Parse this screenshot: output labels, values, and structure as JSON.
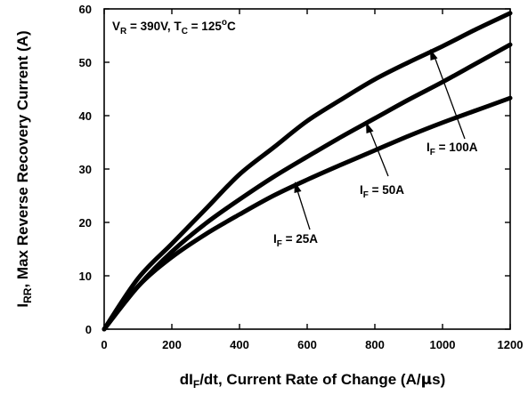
{
  "chart_data": {
    "type": "line",
    "title": "",
    "xlabel": {
      "main": "dI",
      "sub": "F",
      "rest": "/dt, Current Rate of Change (A/",
      "mu": "μ",
      "tail": "s)"
    },
    "ylabel": {
      "main": "I",
      "sub": "RR",
      "rest": ", Max Reverse Recovery Current (A)"
    },
    "xlim": [
      0,
      1200
    ],
    "ylim": [
      0,
      60
    ],
    "xticks": [
      "0",
      "200",
      "400",
      "600",
      "800",
      "1000",
      "1200"
    ],
    "yticks": [
      "0",
      "10",
      "20",
      "30",
      "40",
      "50",
      "60"
    ],
    "grid": false,
    "condition": {
      "v": "V",
      "v_sub": "R",
      "v_rest": " = 390V, T",
      "t_sub": "C",
      "t_rest": " = 125",
      "deg": "o",
      "unit": "C"
    },
    "series": [
      {
        "name": "I_F = 100A",
        "label": {
          "main": "I",
          "sub": "F",
          "rest": " = 100A"
        },
        "x": [
          0,
          100,
          200,
          300,
          400,
          500,
          600,
          700,
          800,
          900,
          1000,
          1100,
          1200
        ],
        "y": [
          0,
          9.5,
          16,
          22.5,
          29,
          34,
          39,
          43,
          46.8,
          50,
          53,
          56.2,
          59.2
        ]
      },
      {
        "name": "I_F = 50A",
        "label": {
          "main": "I",
          "sub": "F",
          "rest": " = 50A"
        },
        "x": [
          0,
          100,
          200,
          300,
          400,
          500,
          600,
          700,
          800,
          900,
          1000,
          1100,
          1200
        ],
        "y": [
          0,
          8,
          14.5,
          19.8,
          24.3,
          28.5,
          32.3,
          36,
          39.5,
          43,
          46.3,
          49.8,
          53.3
        ]
      },
      {
        "name": "I_F = 25A",
        "label": {
          "main": "I",
          "sub": "F",
          "rest": " = 25A"
        },
        "x": [
          0,
          100,
          200,
          300,
          400,
          500,
          600,
          700,
          800,
          900,
          1000,
          1100,
          1200
        ],
        "y": [
          0,
          8,
          13.5,
          17.8,
          21.5,
          25,
          28,
          30.8,
          33.5,
          36.2,
          38.7,
          41,
          43.3
        ]
      }
    ]
  }
}
